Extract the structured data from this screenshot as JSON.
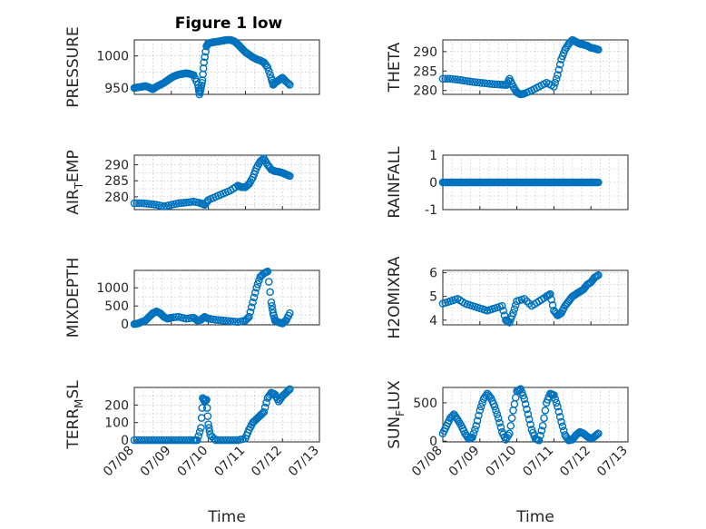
{
  "figure": {
    "title": "Figure 1 low",
    "x_axis_label": "Time",
    "x_tick_labels": [
      "07/08",
      "07/09",
      "07/10",
      "07/11",
      "07/12",
      "07/13"
    ]
  },
  "colors": {
    "marker": "#0072BD",
    "axis": "#262626",
    "grid": "#b8b8b8"
  },
  "chart_data": [
    {
      "type": "scatter",
      "id": "pressure",
      "ylabel": "PRESSURE",
      "xlim": [
        0,
        5
      ],
      "ylim": [
        940,
        1025
      ],
      "yticks": [
        950,
        1000
      ],
      "grid": true,
      "show_xticks": false,
      "show_xlabel": false,
      "x": [
        0.0,
        0.1,
        0.2,
        0.3,
        0.4,
        0.5,
        0.6,
        0.7,
        0.8,
        0.9,
        1.0,
        1.1,
        1.2,
        1.3,
        1.4,
        1.5,
        1.6,
        1.72,
        1.76,
        1.8,
        1.84,
        1.88,
        1.95,
        2.0,
        2.1,
        2.2,
        2.3,
        2.4,
        2.5,
        2.6,
        2.7,
        2.8,
        2.9,
        3.0,
        3.1,
        3.2,
        3.3,
        3.4,
        3.5,
        3.6,
        3.7,
        3.75,
        3.8,
        3.9,
        4.0,
        4.1,
        4.2
      ],
      "y": [
        950,
        951,
        952,
        953,
        951,
        948,
        952,
        955,
        958,
        962,
        966,
        969,
        971,
        972,
        973,
        972,
        970,
        955,
        940,
        950,
        962,
        990,
        1015,
        1020,
        1021,
        1022,
        1023,
        1024,
        1025,
        1025,
        1023,
        1018,
        1012,
        1006,
        1002,
        998,
        995,
        993,
        990,
        982,
        965,
        955,
        958,
        962,
        966,
        960,
        955
      ]
    },
    {
      "type": "scatter",
      "id": "theta",
      "ylabel": "THETA",
      "xlim": [
        0,
        5
      ],
      "ylim": [
        279,
        293
      ],
      "yticks": [
        280,
        285,
        290
      ],
      "grid": true,
      "show_xticks": false,
      "show_xlabel": false,
      "x": [
        0.0,
        0.2,
        0.4,
        0.6,
        0.8,
        1.0,
        1.2,
        1.4,
        1.6,
        1.72,
        1.8,
        1.9,
        2.0,
        2.1,
        2.2,
        2.4,
        2.6,
        2.8,
        3.0,
        3.1,
        3.2,
        3.3,
        3.4,
        3.5,
        3.6,
        3.7,
        3.8,
        3.9,
        4.0,
        4.1,
        4.2
      ],
      "y": [
        283,
        283,
        282.8,
        282.5,
        282.2,
        282,
        281.8,
        281.6,
        281.5,
        281.4,
        283,
        281,
        279.5,
        279,
        279.2,
        280,
        281,
        282,
        281,
        284,
        288,
        290.5,
        292,
        293,
        292.5,
        292,
        291.8,
        291.5,
        291,
        290.8,
        290.5
      ]
    },
    {
      "type": "scatter",
      "id": "air_temp",
      "ylabel_main": "AIR",
      "ylabel_sub": "T",
      "ylabel_rest": "EMP",
      "xlim": [
        0,
        5
      ],
      "ylim": [
        276,
        293
      ],
      "yticks": [
        280,
        285,
        290
      ],
      "grid": true,
      "show_xticks": false,
      "show_xlabel": false,
      "x": [
        0.0,
        0.2,
        0.4,
        0.6,
        0.8,
        1.0,
        1.2,
        1.4,
        1.6,
        1.8,
        1.9,
        2.0,
        2.2,
        2.4,
        2.6,
        2.8,
        2.9,
        3.0,
        3.1,
        3.2,
        3.3,
        3.4,
        3.5,
        3.6,
        3.7,
        3.8,
        3.9,
        4.0,
        4.1,
        4.2
      ],
      "y": [
        278,
        278,
        277.8,
        277.5,
        277,
        277.5,
        278,
        278.2,
        278.5,
        278,
        277.5,
        279,
        280,
        281,
        282,
        283.5,
        283,
        283,
        284,
        286,
        289,
        291,
        292,
        290,
        288.5,
        288,
        287.8,
        287.5,
        287,
        286.5
      ]
    },
    {
      "type": "scatter",
      "id": "rainfall",
      "ylabel": "RAINFALL",
      "xlim": [
        0,
        5
      ],
      "ylim": [
        -1,
        1
      ],
      "yticks": [
        -1,
        0,
        1
      ],
      "grid": true,
      "show_xticks": false,
      "show_xlabel": false,
      "x": [
        0.0,
        0.1,
        0.2,
        0.3,
        0.4,
        0.5,
        0.6,
        0.7,
        0.8,
        0.9,
        1.0,
        1.1,
        1.2,
        1.3,
        1.4,
        1.5,
        1.6,
        1.7,
        1.8,
        1.9,
        2.0,
        2.1,
        2.2,
        2.3,
        2.4,
        2.5,
        2.6,
        2.7,
        2.8,
        2.9,
        3.0,
        3.1,
        3.2,
        3.3,
        3.4,
        3.5,
        3.6,
        3.7,
        3.8,
        3.9,
        4.0,
        4.1,
        4.2
      ],
      "y": [
        0,
        0,
        0,
        0,
        0,
        0,
        0,
        0,
        0,
        0,
        0,
        0,
        0,
        0,
        0,
        0,
        0,
        0,
        0,
        0,
        0,
        0,
        0,
        0,
        0,
        0,
        0,
        0,
        0,
        0,
        0,
        0,
        0,
        0,
        0,
        0,
        0,
        0,
        0,
        0,
        0,
        0,
        0
      ]
    },
    {
      "type": "scatter",
      "id": "mixdepth",
      "ylabel": "MIXDEPTH",
      "xlim": [
        0,
        5
      ],
      "ylim": [
        -20,
        1480
      ],
      "yticks": [
        0,
        500,
        1000
      ],
      "grid": true,
      "show_xticks": false,
      "show_xlabel": false,
      "x": [
        0.0,
        0.1,
        0.2,
        0.3,
        0.4,
        0.5,
        0.6,
        0.7,
        0.8,
        0.9,
        1.0,
        1.2,
        1.4,
        1.6,
        1.7,
        1.8,
        1.9,
        2.0,
        2.2,
        2.4,
        2.6,
        2.8,
        3.0,
        3.1,
        3.2,
        3.3,
        3.4,
        3.5,
        3.6,
        3.7,
        3.75,
        3.8,
        3.9,
        4.0,
        4.1,
        4.2
      ],
      "y": [
        0,
        20,
        60,
        100,
        200,
        300,
        350,
        300,
        200,
        150,
        180,
        200,
        150,
        180,
        100,
        120,
        200,
        150,
        120,
        100,
        80,
        60,
        100,
        200,
        600,
        1000,
        1300,
        1400,
        1450,
        600,
        300,
        100,
        50,
        20,
        100,
        300
      ]
    },
    {
      "type": "scatter",
      "id": "h2omixra",
      "ylabel": "H2OMIXRA",
      "xlim": [
        0,
        5
      ],
      "ylim": [
        3.8,
        6.1
      ],
      "yticks": [
        4,
        5,
        6
      ],
      "grid": true,
      "show_xticks": false,
      "show_xlabel": false,
      "x": [
        0.0,
        0.2,
        0.4,
        0.6,
        0.8,
        1.0,
        1.2,
        1.4,
        1.6,
        1.7,
        1.8,
        1.9,
        2.0,
        2.2,
        2.4,
        2.6,
        2.8,
        2.9,
        3.0,
        3.1,
        3.2,
        3.3,
        3.4,
        3.5,
        3.6,
        3.7,
        3.8,
        3.9,
        4.0,
        4.1,
        4.2
      ],
      "y": [
        4.7,
        4.8,
        4.9,
        4.7,
        4.6,
        4.5,
        4.4,
        4.5,
        4.6,
        4.0,
        3.9,
        4.3,
        4.8,
        4.9,
        4.6,
        4.8,
        5.0,
        5.1,
        4.4,
        4.2,
        4.3,
        4.6,
        4.8,
        5.0,
        5.1,
        5.2,
        5.3,
        5.5,
        5.6,
        5.8,
        5.9
      ]
    },
    {
      "type": "scatter",
      "id": "terr_msl",
      "ylabel_main": "TERR",
      "ylabel_sub": "M",
      "ylabel_rest": "SL",
      "xlim": [
        0,
        5
      ],
      "ylim": [
        -10,
        300
      ],
      "yticks": [
        0,
        100,
        200
      ],
      "grid": true,
      "show_xticks": true,
      "show_xlabel": true,
      "x": [
        0.0,
        0.2,
        0.4,
        0.6,
        0.8,
        1.0,
        1.2,
        1.4,
        1.6,
        1.7,
        1.8,
        1.85,
        1.9,
        1.95,
        2.0,
        2.05,
        2.2,
        2.4,
        2.6,
        2.8,
        3.0,
        3.1,
        3.2,
        3.3,
        3.4,
        3.5,
        3.6,
        3.7,
        3.8,
        3.9,
        4.0,
        4.1,
        4.2
      ],
      "y": [
        0,
        0,
        0,
        0,
        0,
        0,
        0,
        0,
        0,
        0,
        70,
        240,
        220,
        230,
        90,
        30,
        0,
        0,
        0,
        0,
        10,
        60,
        100,
        120,
        140,
        160,
        240,
        270,
        260,
        220,
        250,
        270,
        290
      ]
    },
    {
      "type": "scatter",
      "id": "sun_flux",
      "ylabel_main": "SUN",
      "ylabel_sub": "F",
      "ylabel_rest": "LUX",
      "xlim": [
        0,
        5
      ],
      "ylim": [
        -10,
        700
      ],
      "yticks": [
        0,
        500
      ],
      "grid": true,
      "show_xticks": true,
      "show_xlabel": true,
      "x": [
        0.0,
        0.1,
        0.2,
        0.3,
        0.4,
        0.5,
        0.6,
        0.7,
        0.8,
        0.9,
        1.0,
        1.1,
        1.2,
        1.3,
        1.4,
        1.5,
        1.6,
        1.7,
        1.8,
        1.9,
        2.0,
        2.1,
        2.2,
        2.3,
        2.4,
        2.5,
        2.6,
        2.7,
        2.8,
        2.9,
        3.0,
        3.1,
        3.2,
        3.3,
        3.4,
        3.5,
        3.6,
        3.7,
        3.8,
        3.9,
        4.0,
        4.1,
        4.2
      ],
      "y": [
        100,
        200,
        300,
        350,
        280,
        200,
        100,
        30,
        50,
        200,
        400,
        550,
        620,
        560,
        450,
        300,
        120,
        20,
        100,
        400,
        650,
        680,
        550,
        350,
        150,
        30,
        10,
        200,
        500,
        620,
        600,
        450,
        250,
        80,
        10,
        20,
        80,
        120,
        100,
        60,
        30,
        60,
        100
      ]
    }
  ]
}
